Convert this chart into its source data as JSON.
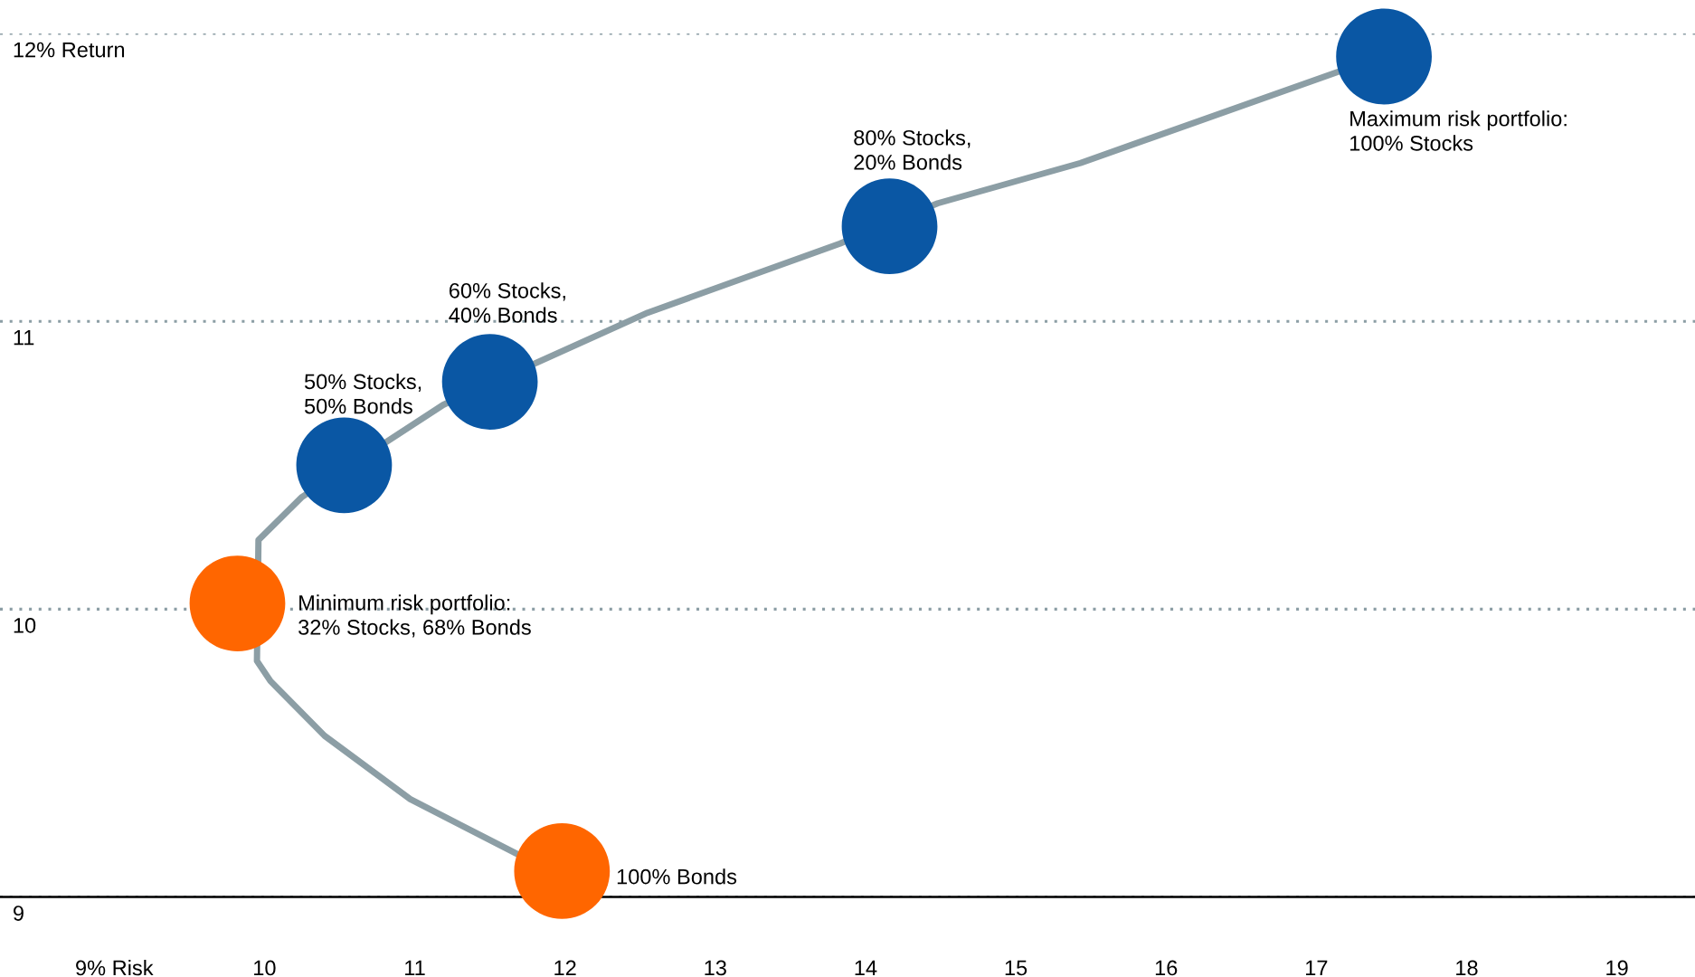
{
  "chart_data": {
    "type": "line",
    "series": [
      {
        "color": "#8c9ea5",
        "x": [
          11.68,
          10.97,
          10.4,
          10.04,
          9.95,
          9.96,
          10.25,
          11.19,
          12.55,
          13.83,
          14.48,
          15.43,
          17.16
        ],
        "values": [
          9.15,
          9.34,
          9.56,
          9.75,
          9.82,
          10.24,
          10.39,
          10.71,
          11.03,
          11.27,
          11.41,
          11.55,
          11.87
        ]
      },
      {
        "type": "scatter",
        "marker": "circle",
        "x": [
          11.98,
          9.82,
          10.53,
          11.5,
          14.16,
          17.45
        ],
        "values": [
          9.09,
          10.02,
          10.5,
          10.79,
          11.33,
          11.92
        ],
        "colors": [
          "#ff6600",
          "#ff6600",
          "#0a57a4",
          "#0a57a4",
          "#0a57a4",
          "#0a57a4"
        ]
      }
    ],
    "xlim": [
      8.24,
      19.52
    ],
    "xticks": [
      {
        "value": 9,
        "label": "9% Risk"
      },
      10,
      11,
      12,
      13,
      14,
      15,
      16,
      17,
      18,
      19
    ],
    "ylim": [
      9,
      12
    ],
    "yticks": [
      {
        "value": 9,
        "label": "9"
      },
      10,
      11,
      {
        "value": 12,
        "label": "12% Return"
      }
    ],
    "grid": "y",
    "annotations": [
      "100% Bonds",
      "Minimum risk portfolio:\n32% Stocks, 68% Bonds",
      "50% Stocks,\n50% Bonds",
      "60% Stocks,\n40% Bonds",
      "80% Stocks,\n20% Bonds",
      "Maximum risk portfolio:\n100% Stocks"
    ]
  }
}
